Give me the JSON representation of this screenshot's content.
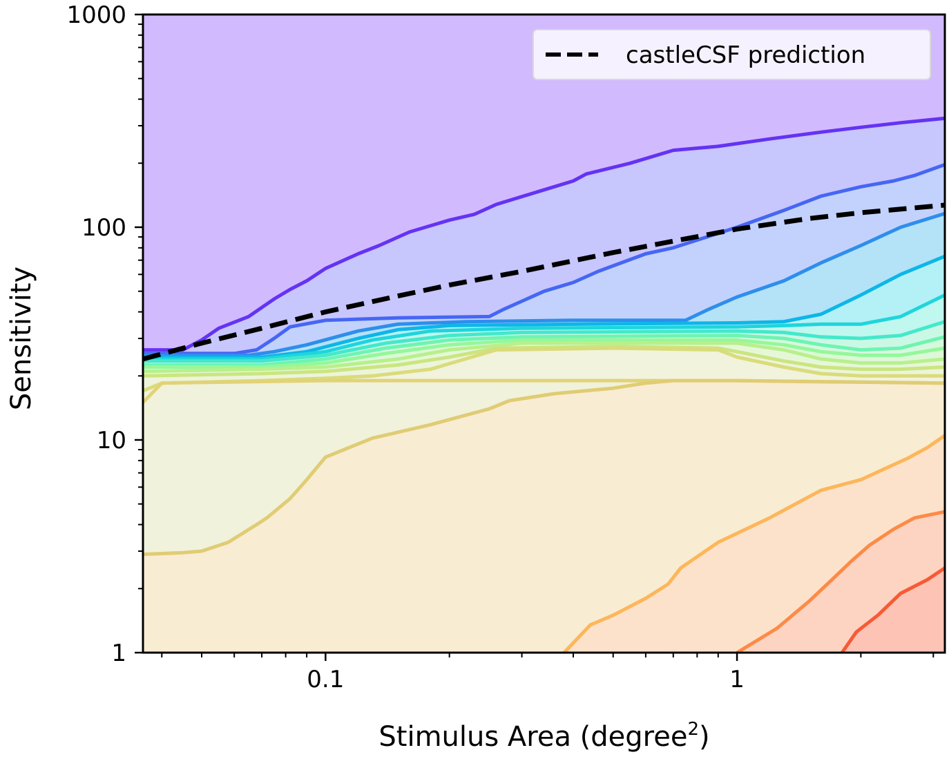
{
  "chart_data": {
    "type": "area",
    "title": "",
    "xlabel": "Stimulus Area (degree",
    "xlabel_superscript": "2",
    "xlabel_suffix": ")",
    "ylabel": "Sensitivity",
    "x_scale": "log",
    "y_scale": "log",
    "xlim": [
      0.036,
      3.2
    ],
    "ylim": [
      1,
      1000
    ],
    "x_ticks": [
      {
        "value": 0.1,
        "label": "0.1"
      },
      {
        "value": 1,
        "label": "1"
      }
    ],
    "y_ticks": [
      {
        "value": 1,
        "label": "1"
      },
      {
        "value": 10,
        "label": "10"
      },
      {
        "value": 100,
        "label": "100"
      },
      {
        "value": 1000,
        "label": "1000"
      }
    ],
    "grid": false,
    "legend": {
      "placement": "top-right",
      "entries": [
        "castleCSF prediction"
      ]
    },
    "background_fill": "#d2baff",
    "contours": [
      {
        "color": "#6433f2",
        "fill": "#c7c6fd",
        "points": [
          [
            0.036,
            26.5
          ],
          [
            0.045,
            26.5
          ],
          [
            0.05,
            29.5
          ],
          [
            0.055,
            33.5
          ],
          [
            0.065,
            38
          ],
          [
            0.075,
            46
          ],
          [
            0.082,
            51
          ],
          [
            0.09,
            56
          ],
          [
            0.1,
            64
          ],
          [
            0.12,
            75
          ],
          [
            0.135,
            82
          ],
          [
            0.16,
            95
          ],
          [
            0.2,
            108
          ],
          [
            0.23,
            115
          ],
          [
            0.26,
            128
          ],
          [
            0.34,
            150
          ],
          [
            0.4,
            165
          ],
          [
            0.43,
            178
          ],
          [
            0.55,
            200
          ],
          [
            0.7,
            230
          ],
          [
            0.9,
            240
          ],
          [
            1.2,
            260
          ],
          [
            1.6,
            280
          ],
          [
            2.0,
            295
          ],
          [
            2.5,
            310
          ],
          [
            3.2,
            325
          ]
        ]
      },
      {
        "color": "#4666f3",
        "fill": "#c3d2fc",
        "points": [
          [
            0.036,
            25.5
          ],
          [
            0.06,
            25.5
          ],
          [
            0.068,
            26.5
          ],
          [
            0.075,
            30
          ],
          [
            0.082,
            34
          ],
          [
            0.1,
            36.5
          ],
          [
            0.15,
            37.5
          ],
          [
            0.25,
            38
          ],
          [
            0.27,
            41
          ],
          [
            0.34,
            50
          ],
          [
            0.4,
            55
          ],
          [
            0.46,
            62
          ],
          [
            0.6,
            75
          ],
          [
            0.7,
            80
          ],
          [
            0.8,
            87
          ],
          [
            1.0,
            100
          ],
          [
            1.3,
            120
          ],
          [
            1.6,
            140
          ],
          [
            2.0,
            155
          ],
          [
            2.4,
            165
          ],
          [
            2.7,
            175
          ],
          [
            3.2,
            197
          ]
        ]
      },
      {
        "color": "#2e8eec",
        "fill": "#b4e2f6",
        "points": [
          [
            0.036,
            25
          ],
          [
            0.065,
            25
          ],
          [
            0.075,
            26
          ],
          [
            0.09,
            28
          ],
          [
            0.12,
            32.5
          ],
          [
            0.15,
            35
          ],
          [
            0.22,
            36
          ],
          [
            0.4,
            36.5
          ],
          [
            0.75,
            36.5
          ],
          [
            0.85,
            41
          ],
          [
            1.0,
            47
          ],
          [
            1.3,
            56
          ],
          [
            1.6,
            68
          ],
          [
            2.0,
            82
          ],
          [
            2.5,
            100
          ],
          [
            3.2,
            116
          ]
        ]
      },
      {
        "color": "#0db6e8",
        "fill": "#b3f1f6",
        "points": [
          [
            0.036,
            24.5
          ],
          [
            0.07,
            24.5
          ],
          [
            0.09,
            26
          ],
          [
            0.12,
            30
          ],
          [
            0.15,
            33
          ],
          [
            0.2,
            34.5
          ],
          [
            0.4,
            35
          ],
          [
            1.0,
            35.5
          ],
          [
            1.3,
            36
          ],
          [
            1.6,
            39
          ],
          [
            2.0,
            48
          ],
          [
            2.5,
            60
          ],
          [
            3.2,
            73
          ]
        ]
      },
      {
        "color": "#1fd5dc",
        "fill": "#c0f7ef",
        "points": [
          [
            0.036,
            24
          ],
          [
            0.07,
            24
          ],
          [
            0.1,
            26
          ],
          [
            0.13,
            29.5
          ],
          [
            0.18,
            32.5
          ],
          [
            0.3,
            33.5
          ],
          [
            1.0,
            34
          ],
          [
            1.3,
            34.5
          ],
          [
            1.6,
            35
          ],
          [
            2.0,
            35
          ],
          [
            2.5,
            38
          ],
          [
            3.2,
            48
          ]
        ]
      },
      {
        "color": "#44e8cb",
        "fill": "#cbf8e5",
        "points": [
          [
            0.036,
            23.5
          ],
          [
            0.07,
            23.5
          ],
          [
            0.1,
            25
          ],
          [
            0.14,
            28.5
          ],
          [
            0.2,
            31
          ],
          [
            0.3,
            32
          ],
          [
            1.0,
            32.5
          ],
          [
            1.3,
            32
          ],
          [
            1.6,
            30.5
          ],
          [
            2.0,
            30
          ],
          [
            2.5,
            31
          ],
          [
            3.2,
            36
          ]
        ]
      },
      {
        "color": "#6ef4b2",
        "fill": "#d5f9dd",
        "points": [
          [
            0.036,
            22.5
          ],
          [
            0.07,
            22.5
          ],
          [
            0.1,
            24
          ],
          [
            0.14,
            27
          ],
          [
            0.2,
            29.5
          ],
          [
            0.3,
            30.5
          ],
          [
            1.0,
            31
          ],
          [
            1.3,
            30
          ],
          [
            1.6,
            28
          ],
          [
            2.0,
            26.5
          ],
          [
            2.5,
            27
          ],
          [
            3.2,
            30.5
          ]
        ]
      },
      {
        "color": "#95f79b",
        "fill": "#ddf8d7",
        "points": [
          [
            0.036,
            22
          ],
          [
            0.07,
            22
          ],
          [
            0.1,
            23
          ],
          [
            0.14,
            25.5
          ],
          [
            0.2,
            28
          ],
          [
            0.3,
            29.5
          ],
          [
            1.0,
            29.5
          ],
          [
            1.3,
            28
          ],
          [
            1.6,
            26
          ],
          [
            2.0,
            25
          ],
          [
            2.5,
            25
          ],
          [
            3.2,
            27
          ]
        ]
      },
      {
        "color": "#b8f08c",
        "fill": "#e6f7d8",
        "points": [
          [
            0.036,
            21
          ],
          [
            0.07,
            21.5
          ],
          [
            0.1,
            22
          ],
          [
            0.15,
            24
          ],
          [
            0.2,
            26.5
          ],
          [
            0.3,
            28.5
          ],
          [
            1.0,
            28.5
          ],
          [
            1.3,
            26.5
          ],
          [
            1.6,
            24
          ],
          [
            2.0,
            23
          ],
          [
            2.5,
            23
          ],
          [
            3.2,
            24
          ]
        ]
      },
      {
        "color": "#cbe580",
        "fill": "#edf4db",
        "points": [
          [
            0.036,
            20
          ],
          [
            0.07,
            20.5
          ],
          [
            0.1,
            21
          ],
          [
            0.15,
            22.5
          ],
          [
            0.2,
            24.5
          ],
          [
            0.26,
            27
          ],
          [
            0.5,
            27.5
          ],
          [
            0.9,
            27
          ],
          [
            1.0,
            26
          ],
          [
            1.3,
            23.5
          ],
          [
            1.6,
            22
          ],
          [
            2.0,
            21.5
          ],
          [
            2.5,
            21.5
          ],
          [
            3.2,
            22
          ]
        ]
      },
      {
        "color": "#d9dc7a",
        "fill": "#f1f3dc",
        "points": [
          [
            0.036,
            17
          ],
          [
            0.04,
            18.5
          ],
          [
            0.07,
            19
          ],
          [
            0.1,
            19.5
          ],
          [
            0.13,
            20
          ],
          [
            0.18,
            21.5
          ],
          [
            0.26,
            26.5
          ],
          [
            0.5,
            27
          ],
          [
            0.9,
            26.5
          ],
          [
            1.0,
            24.5
          ],
          [
            1.3,
            22
          ],
          [
            1.6,
            20.5
          ],
          [
            2.0,
            20
          ],
          [
            2.5,
            20
          ],
          [
            3.2,
            20
          ]
        ]
      },
      {
        "color": "#e2d278",
        "fill": "#f1f2db",
        "points": [
          [
            0.036,
            15
          ],
          [
            0.04,
            18.5
          ],
          [
            0.1,
            19
          ],
          [
            0.5,
            19
          ],
          [
            1.0,
            19
          ],
          [
            3.2,
            18.5
          ]
        ]
      },
      {
        "color": "#e0cc74",
        "fill": "#f8ecd3",
        "points": [
          [
            0.036,
            2.9
          ],
          [
            0.045,
            2.95
          ],
          [
            0.05,
            3.0
          ],
          [
            0.058,
            3.3
          ],
          [
            0.068,
            4.0
          ],
          [
            0.072,
            4.3
          ],
          [
            0.082,
            5.3
          ],
          [
            0.09,
            6.5
          ],
          [
            0.1,
            8.3
          ],
          [
            0.13,
            10.2
          ],
          [
            0.18,
            11.8
          ],
          [
            0.25,
            14
          ],
          [
            0.28,
            15.3
          ],
          [
            0.36,
            16.5
          ],
          [
            0.5,
            17.5
          ],
          [
            0.6,
            18.5
          ],
          [
            0.7,
            19
          ],
          [
            1.0,
            19
          ],
          [
            1.5,
            18.8
          ],
          [
            3.2,
            18.5
          ]
        ]
      },
      {
        "color": "#fdb65a",
        "fill": "#fde2cb",
        "points": [
          [
            0.38,
            1
          ],
          [
            0.44,
            1.35
          ],
          [
            0.5,
            1.5
          ],
          [
            0.6,
            1.8
          ],
          [
            0.68,
            2.1
          ],
          [
            0.73,
            2.5
          ],
          [
            0.9,
            3.3
          ],
          [
            1.2,
            4.3
          ],
          [
            1.6,
            5.8
          ],
          [
            2.0,
            6.5
          ],
          [
            2.6,
            8.2
          ],
          [
            2.9,
            9.2
          ],
          [
            3.2,
            10.5
          ]
        ]
      },
      {
        "color": "#fc8b47",
        "fill": "#fdd3c1",
        "points": [
          [
            1.0,
            1
          ],
          [
            1.25,
            1.3
          ],
          [
            1.5,
            1.75
          ],
          [
            1.7,
            2.2
          ],
          [
            1.9,
            2.7
          ],
          [
            2.1,
            3.2
          ],
          [
            2.4,
            3.8
          ],
          [
            2.7,
            4.3
          ],
          [
            3.2,
            4.6
          ]
        ]
      },
      {
        "color": "#f75a36",
        "fill": "#fdc4b5",
        "points": [
          [
            1.8,
            1
          ],
          [
            1.95,
            1.25
          ],
          [
            2.2,
            1.5
          ],
          [
            2.5,
            1.9
          ],
          [
            2.9,
            2.2
          ],
          [
            3.2,
            2.5
          ]
        ]
      }
    ],
    "series": [
      {
        "name": "castleCSF prediction",
        "style": "dashed",
        "color": "#000000",
        "points": [
          [
            0.036,
            24
          ],
          [
            0.05,
            28.5
          ],
          [
            0.07,
            33.5
          ],
          [
            0.1,
            40
          ],
          [
            0.15,
            47.5
          ],
          [
            0.2,
            53.5
          ],
          [
            0.3,
            62
          ],
          [
            0.5,
            76
          ],
          [
            0.7,
            86
          ],
          [
            1.0,
            98
          ],
          [
            1.5,
            110
          ],
          [
            2.0,
            117
          ],
          [
            3.2,
            127
          ]
        ]
      }
    ]
  }
}
